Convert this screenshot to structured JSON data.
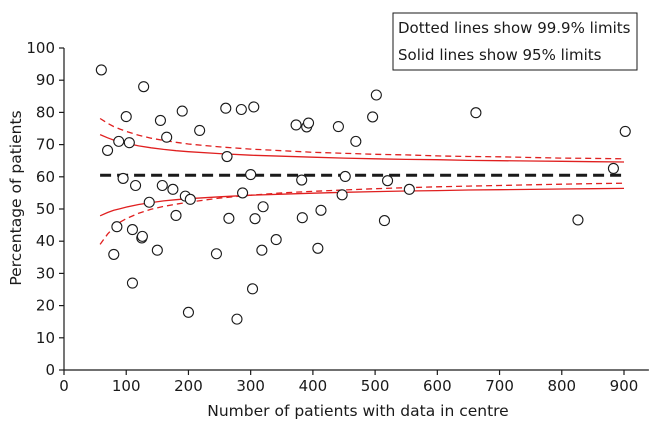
{
  "chart_data": {
    "type": "scatter",
    "subtype": "funnel plot",
    "xlabel": "Number of patients with data in centre",
    "ylabel": "Percentage of patients",
    "xlim": [
      0,
      940
    ],
    "ylim": [
      0,
      100
    ],
    "xticks": [
      0,
      100,
      200,
      300,
      400,
      500,
      600,
      700,
      800,
      900
    ],
    "yticks": [
      0,
      10,
      20,
      30,
      40,
      50,
      60,
      70,
      80,
      90,
      100
    ],
    "grid": false,
    "legend": {
      "placement": "top-right",
      "lines": [
        "Dotted lines show 99.9% limits",
        "Solid lines show 95% limits"
      ]
    },
    "target_value": 60.5,
    "colors": {
      "points": "#1a1a1a",
      "target_line": "#1a1a1a",
      "limits": "#e02020"
    },
    "limit_curves": {
      "n": [
        58,
        70,
        80,
        90,
        100,
        120,
        140,
        160,
        180,
        200,
        250,
        300,
        350,
        400,
        450,
        500,
        550,
        600,
        650,
        700,
        750,
        800,
        850,
        900
      ],
      "upper_99_9": [
        78.1,
        76.6,
        75.6,
        74.8,
        74.1,
        72.9,
        72.0,
        71.3,
        70.7,
        70.2,
        69.3,
        68.6,
        68.1,
        67.6,
        67.3,
        67.0,
        66.8,
        66.5,
        66.3,
        66.2,
        66.0,
        65.8,
        65.7,
        65.6
      ],
      "upper_95": [
        73.1,
        72.1,
        71.4,
        70.9,
        70.4,
        69.6,
        69.0,
        68.5,
        68.1,
        67.8,
        67.2,
        66.7,
        66.4,
        66.1,
        65.8,
        65.6,
        65.4,
        65.3,
        65.1,
        65.0,
        64.9,
        64.8,
        64.7,
        64.6
      ],
      "lower_95": [
        47.9,
        48.9,
        49.6,
        50.1,
        50.6,
        51.4,
        52.0,
        52.5,
        52.9,
        53.2,
        53.8,
        54.3,
        54.6,
        54.9,
        55.2,
        55.4,
        55.6,
        55.7,
        55.9,
        56.0,
        56.1,
        56.2,
        56.3,
        56.4
      ],
      "lower_99_9": [
        39.0,
        42.2,
        44.3,
        45.9,
        47.0,
        48.7,
        49.9,
        50.8,
        51.5,
        52.1,
        53.4,
        54.3,
        55.0,
        55.5,
        55.9,
        56.3,
        56.6,
        56.9,
        57.1,
        57.3,
        57.5,
        57.7,
        57.9,
        58.0
      ]
    },
    "points": [
      {
        "x": 60,
        "y": 93.2
      },
      {
        "x": 70,
        "y": 68.2
      },
      {
        "x": 80,
        "y": 35.9
      },
      {
        "x": 85,
        "y": 44.5
      },
      {
        "x": 88,
        "y": 71.0
      },
      {
        "x": 95,
        "y": 59.5
      },
      {
        "x": 100,
        "y": 78.7
      },
      {
        "x": 105,
        "y": 70.6
      },
      {
        "x": 110,
        "y": 27.0
      },
      {
        "x": 110,
        "y": 43.6
      },
      {
        "x": 115,
        "y": 57.3
      },
      {
        "x": 125,
        "y": 41.0
      },
      {
        "x": 126,
        "y": 41.5
      },
      {
        "x": 128,
        "y": 88.0
      },
      {
        "x": 137,
        "y": 52.1
      },
      {
        "x": 150,
        "y": 37.2
      },
      {
        "x": 155,
        "y": 77.5
      },
      {
        "x": 158,
        "y": 57.3
      },
      {
        "x": 165,
        "y": 72.3
      },
      {
        "x": 175,
        "y": 56.1
      },
      {
        "x": 180,
        "y": 48.0
      },
      {
        "x": 190,
        "y": 80.4
      },
      {
        "x": 195,
        "y": 54.0
      },
      {
        "x": 200,
        "y": 17.9
      },
      {
        "x": 203,
        "y": 53.0
      },
      {
        "x": 218,
        "y": 74.4
      },
      {
        "x": 245,
        "y": 36.1
      },
      {
        "x": 260,
        "y": 81.3
      },
      {
        "x": 262,
        "y": 66.3
      },
      {
        "x": 265,
        "y": 47.1
      },
      {
        "x": 278,
        "y": 15.8
      },
      {
        "x": 285,
        "y": 80.9
      },
      {
        "x": 287,
        "y": 55.0
      },
      {
        "x": 300,
        "y": 60.7
      },
      {
        "x": 303,
        "y": 25.2
      },
      {
        "x": 305,
        "y": 81.7
      },
      {
        "x": 307,
        "y": 47.0
      },
      {
        "x": 318,
        "y": 37.2
      },
      {
        "x": 320,
        "y": 50.7
      },
      {
        "x": 341,
        "y": 40.5
      },
      {
        "x": 373,
        "y": 76.1
      },
      {
        "x": 382,
        "y": 59.0
      },
      {
        "x": 383,
        "y": 47.3
      },
      {
        "x": 390,
        "y": 75.5
      },
      {
        "x": 393,
        "y": 76.7
      },
      {
        "x": 408,
        "y": 37.8
      },
      {
        "x": 413,
        "y": 49.6
      },
      {
        "x": 441,
        "y": 75.6
      },
      {
        "x": 447,
        "y": 54.4
      },
      {
        "x": 452,
        "y": 60.1
      },
      {
        "x": 469,
        "y": 71.0
      },
      {
        "x": 496,
        "y": 78.6
      },
      {
        "x": 502,
        "y": 85.4
      },
      {
        "x": 515,
        "y": 46.4
      },
      {
        "x": 520,
        "y": 58.8
      },
      {
        "x": 555,
        "y": 56.1
      },
      {
        "x": 662,
        "y": 79.9
      },
      {
        "x": 826,
        "y": 46.6
      },
      {
        "x": 883,
        "y": 62.6
      },
      {
        "x": 902,
        "y": 74.1
      }
    ]
  }
}
